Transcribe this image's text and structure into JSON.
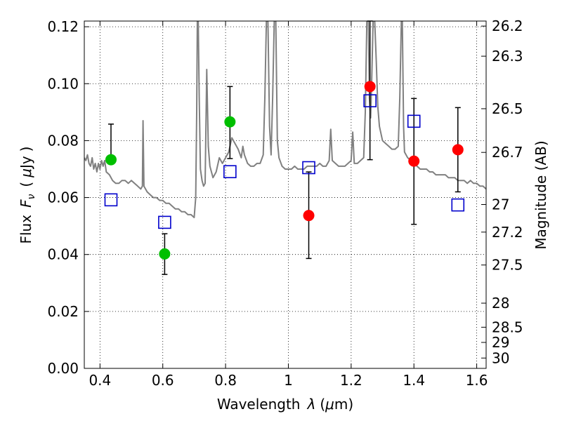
{
  "chart_data": {
    "type": "scatter",
    "xlabel": "Wavelength",
    "xlabel_symbol": "λ",
    "xlabel_unit_open": "(",
    "xlabel_unit_mu": "μ",
    "xlabel_unit_rest": "m)",
    "ylabel_left": "Flux",
    "ylabel_left_symbol": "F",
    "ylabel_left_subscript": "ν",
    "ylabel_left_unit_open": "(",
    "ylabel_left_unit_mu": "μ",
    "ylabel_left_unit_rest": "Jy",
    "ylabel_left_unit_close": ")",
    "ylabel_right": "Magnitude (AB)",
    "xlim": [
      0.35,
      1.63
    ],
    "ylim": [
      0,
      0.122
    ],
    "x_ticks": [
      {
        "value": 0.4,
        "label": "0.4"
      },
      {
        "value": 0.6,
        "label": "0.6"
      },
      {
        "value": 0.8,
        "label": "0.8"
      },
      {
        "value": 1.0,
        "label": "1"
      },
      {
        "value": 1.2,
        "label": "1.2"
      },
      {
        "value": 1.4,
        "label": "1.4"
      },
      {
        "value": 1.6,
        "label": "1.6"
      }
    ],
    "y_ticks": [
      {
        "value": 0.0,
        "label": "0.00"
      },
      {
        "value": 0.02,
        "label": "0.02"
      },
      {
        "value": 0.04,
        "label": "0.04"
      },
      {
        "value": 0.06,
        "label": "0.06"
      },
      {
        "value": 0.08,
        "label": "0.08"
      },
      {
        "value": 0.1,
        "label": "0.10"
      },
      {
        "value": 0.12,
        "label": "0.12"
      }
    ],
    "right_ticks": [
      {
        "mag": 26.2,
        "label": "26.2"
      },
      {
        "mag": 26.3,
        "label": "26.3"
      },
      {
        "mag": 26.5,
        "label": "26.5"
      },
      {
        "mag": 26.7,
        "label": "26.7"
      },
      {
        "mag": 27.0,
        "label": "27"
      },
      {
        "mag": 27.2,
        "label": "27.2"
      },
      {
        "mag": 27.5,
        "label": "27.5"
      },
      {
        "mag": 28.0,
        "label": "28"
      },
      {
        "mag": 28.5,
        "label": "28.5"
      },
      {
        "mag": 29.0,
        "label": "29"
      },
      {
        "mag": 30.0,
        "label": "30"
      }
    ],
    "grid": true,
    "colors": {
      "spectrum": "#808080",
      "observed_optical": "#00bf00",
      "observed_nir": "#ff0000",
      "model": "#0000cc",
      "errorbar": "#000000"
    },
    "observed_points": [
      {
        "x": 0.435,
        "y": 0.0733,
        "yerr_low": 0.0733,
        "yerr_high": 0.0858,
        "group": "optical"
      },
      {
        "x": 0.606,
        "y": 0.0402,
        "yerr_low": 0.033,
        "yerr_high": 0.0473,
        "group": "optical"
      },
      {
        "x": 0.814,
        "y": 0.0866,
        "yerr_low": 0.0737,
        "yerr_high": 0.099,
        "group": "optical"
      },
      {
        "x": 1.065,
        "y": 0.0537,
        "yerr_low": 0.0386,
        "yerr_high": 0.069,
        "group": "nir"
      },
      {
        "x": 1.26,
        "y": 0.099,
        "yerr_low": 0.0733,
        "yerr_high": 0.122,
        "group": "nir"
      },
      {
        "x": 1.4,
        "y": 0.0728,
        "yerr_low": 0.0506,
        "yerr_high": 0.0948,
        "group": "nir"
      },
      {
        "x": 1.54,
        "y": 0.0768,
        "yerr_low": 0.062,
        "yerr_high": 0.0916,
        "group": "nir"
      }
    ],
    "model_points": [
      {
        "x": 0.435,
        "y": 0.0592
      },
      {
        "x": 0.606,
        "y": 0.0513
      },
      {
        "x": 0.814,
        "y": 0.0691
      },
      {
        "x": 1.065,
        "y": 0.0705
      },
      {
        "x": 1.26,
        "y": 0.094
      },
      {
        "x": 1.4,
        "y": 0.0868
      },
      {
        "x": 1.54,
        "y": 0.0574
      }
    ],
    "spectrum": [
      [
        0.35,
        0.074
      ],
      [
        0.355,
        0.073
      ],
      [
        0.36,
        0.075
      ],
      [
        0.365,
        0.072
      ],
      [
        0.37,
        0.071
      ],
      [
        0.375,
        0.074
      ],
      [
        0.38,
        0.07
      ],
      [
        0.385,
        0.072
      ],
      [
        0.39,
        0.069
      ],
      [
        0.395,
        0.072
      ],
      [
        0.4,
        0.07
      ],
      [
        0.405,
        0.073
      ],
      [
        0.41,
        0.071
      ],
      [
        0.415,
        0.073
      ],
      [
        0.42,
        0.069
      ],
      [
        0.43,
        0.068
      ],
      [
        0.44,
        0.066
      ],
      [
        0.45,
        0.065
      ],
      [
        0.46,
        0.065
      ],
      [
        0.47,
        0.066
      ],
      [
        0.48,
        0.066
      ],
      [
        0.49,
        0.065
      ],
      [
        0.5,
        0.066
      ],
      [
        0.51,
        0.065
      ],
      [
        0.52,
        0.064
      ],
      [
        0.53,
        0.063
      ],
      [
        0.535,
        0.064
      ],
      [
        0.537,
        0.087
      ],
      [
        0.54,
        0.064
      ],
      [
        0.55,
        0.062
      ],
      [
        0.56,
        0.061
      ],
      [
        0.57,
        0.06
      ],
      [
        0.58,
        0.06
      ],
      [
        0.59,
        0.059
      ],
      [
        0.6,
        0.059
      ],
      [
        0.61,
        0.058
      ],
      [
        0.62,
        0.058
      ],
      [
        0.63,
        0.057
      ],
      [
        0.64,
        0.056
      ],
      [
        0.65,
        0.056
      ],
      [
        0.66,
        0.055
      ],
      [
        0.67,
        0.055
      ],
      [
        0.68,
        0.054
      ],
      [
        0.69,
        0.054
      ],
      [
        0.7,
        0.053
      ],
      [
        0.705,
        0.06
      ],
      [
        0.708,
        0.09
      ],
      [
        0.71,
        0.122
      ],
      [
        0.713,
        0.122
      ],
      [
        0.716,
        0.095
      ],
      [
        0.72,
        0.07
      ],
      [
        0.725,
        0.066
      ],
      [
        0.73,
        0.064
      ],
      [
        0.735,
        0.065
      ],
      [
        0.74,
        0.105
      ],
      [
        0.745,
        0.078
      ],
      [
        0.75,
        0.071
      ],
      [
        0.76,
        0.067
      ],
      [
        0.77,
        0.069
      ],
      [
        0.78,
        0.074
      ],
      [
        0.79,
        0.072
      ],
      [
        0.8,
        0.074
      ],
      [
        0.81,
        0.076
      ],
      [
        0.82,
        0.081
      ],
      [
        0.83,
        0.079
      ],
      [
        0.84,
        0.077
      ],
      [
        0.85,
        0.074
      ],
      [
        0.855,
        0.078
      ],
      [
        0.86,
        0.075
      ],
      [
        0.87,
        0.072
      ],
      [
        0.88,
        0.071
      ],
      [
        0.89,
        0.071
      ],
      [
        0.9,
        0.072
      ],
      [
        0.91,
        0.072
      ],
      [
        0.92,
        0.075
      ],
      [
        0.925,
        0.095
      ],
      [
        0.93,
        0.122
      ],
      [
        0.935,
        0.122
      ],
      [
        0.94,
        0.085
      ],
      [
        0.945,
        0.075
      ],
      [
        0.95,
        0.095
      ],
      [
        0.955,
        0.122
      ],
      [
        0.96,
        0.122
      ],
      [
        0.965,
        0.08
      ],
      [
        0.97,
        0.074
      ],
      [
        0.98,
        0.071
      ],
      [
        0.99,
        0.07
      ],
      [
        1.0,
        0.07
      ],
      [
        1.01,
        0.07
      ],
      [
        1.02,
        0.071
      ],
      [
        1.03,
        0.07
      ],
      [
        1.04,
        0.07
      ],
      [
        1.05,
        0.07
      ],
      [
        1.06,
        0.071
      ],
      [
        1.07,
        0.071
      ],
      [
        1.08,
        0.071
      ],
      [
        1.09,
        0.071
      ],
      [
        1.1,
        0.072
      ],
      [
        1.11,
        0.071
      ],
      [
        1.12,
        0.071
      ],
      [
        1.13,
        0.073
      ],
      [
        1.135,
        0.084
      ],
      [
        1.14,
        0.073
      ],
      [
        1.15,
        0.072
      ],
      [
        1.16,
        0.071
      ],
      [
        1.17,
        0.071
      ],
      [
        1.18,
        0.071
      ],
      [
        1.19,
        0.072
      ],
      [
        1.2,
        0.073
      ],
      [
        1.205,
        0.083
      ],
      [
        1.21,
        0.072
      ],
      [
        1.22,
        0.072
      ],
      [
        1.23,
        0.073
      ],
      [
        1.24,
        0.074
      ],
      [
        1.245,
        0.09
      ],
      [
        1.25,
        0.122
      ],
      [
        1.255,
        0.122
      ],
      [
        1.258,
        0.095
      ],
      [
        1.262,
        0.088
      ],
      [
        1.266,
        0.103
      ],
      [
        1.27,
        0.122
      ],
      [
        1.275,
        0.122
      ],
      [
        1.28,
        0.108
      ],
      [
        1.285,
        0.092
      ],
      [
        1.29,
        0.085
      ],
      [
        1.3,
        0.08
      ],
      [
        1.31,
        0.079
      ],
      [
        1.32,
        0.078
      ],
      [
        1.33,
        0.077
      ],
      [
        1.34,
        0.077
      ],
      [
        1.35,
        0.078
      ],
      [
        1.355,
        0.095
      ],
      [
        1.36,
        0.122
      ],
      [
        1.363,
        0.122
      ],
      [
        1.367,
        0.085
      ],
      [
        1.37,
        0.076
      ],
      [
        1.38,
        0.074
      ],
      [
        1.39,
        0.073
      ],
      [
        1.4,
        0.072
      ],
      [
        1.41,
        0.071
      ],
      [
        1.42,
        0.07
      ],
      [
        1.43,
        0.07
      ],
      [
        1.44,
        0.07
      ],
      [
        1.45,
        0.069
      ],
      [
        1.46,
        0.069
      ],
      [
        1.47,
        0.068
      ],
      [
        1.48,
        0.068
      ],
      [
        1.49,
        0.068
      ],
      [
        1.5,
        0.068
      ],
      [
        1.51,
        0.067
      ],
      [
        1.52,
        0.067
      ],
      [
        1.53,
        0.067
      ],
      [
        1.54,
        0.066
      ],
      [
        1.55,
        0.066
      ],
      [
        1.56,
        0.066
      ],
      [
        1.57,
        0.065
      ],
      [
        1.58,
        0.066
      ],
      [
        1.59,
        0.065
      ],
      [
        1.6,
        0.065
      ],
      [
        1.61,
        0.064
      ],
      [
        1.62,
        0.064
      ],
      [
        1.63,
        0.063
      ]
    ]
  }
}
